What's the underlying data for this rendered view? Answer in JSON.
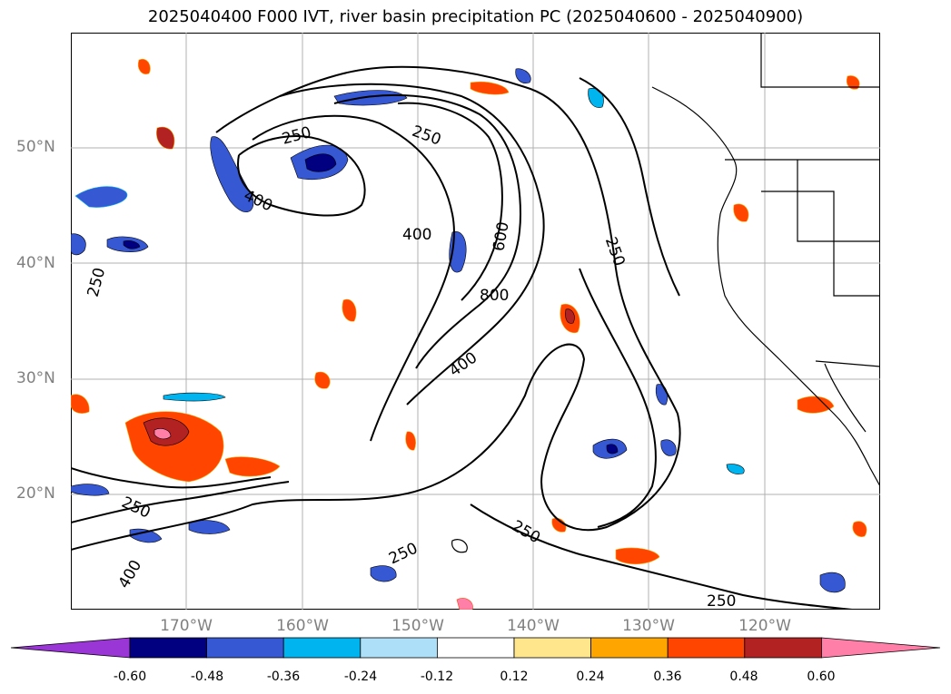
{
  "title": "2025040400 F000 IVT, river basin precipitation PC (2025040600 - 2025040900)",
  "map": {
    "projection": "lat-lon",
    "lon_range_deg_east": [
      180,
      250
    ],
    "lat_range_deg_north": [
      10,
      60
    ],
    "grid": true,
    "lat_ticks": [
      {
        "label": "50°N",
        "value": 50
      },
      {
        "label": "40°N",
        "value": 40
      },
      {
        "label": "30°N",
        "value": 30
      },
      {
        "label": "20°N",
        "value": 20
      }
    ],
    "lon_ticks": [
      {
        "label": "170°W",
        "value": -170
      },
      {
        "label": "160°W",
        "value": -160
      },
      {
        "label": "150°W",
        "value": -150
      },
      {
        "label": "140°W",
        "value": -140
      },
      {
        "label": "130°W",
        "value": -130
      },
      {
        "label": "120°W",
        "value": -120
      }
    ],
    "contour_labels": [
      "250",
      "250",
      "250",
      "250",
      "250",
      "250",
      "250",
      "250",
      "400",
      "400",
      "400",
      "400",
      "600",
      "800"
    ]
  },
  "colorbar": {
    "extend": "both",
    "colors": [
      "#9a35d6",
      "#000080",
      "#3658d2",
      "#00b4f0",
      "#ade0f8",
      "#ffffff",
      "#ffe68c",
      "#ffa500",
      "#ff4500",
      "#b22222",
      "#ff7fa8"
    ],
    "tick_labels": [
      "-0.60",
      "-0.48",
      "-0.36",
      "-0.24",
      "-0.12",
      "0.12",
      "0.24",
      "0.36",
      "0.48",
      "0.60"
    ]
  }
}
